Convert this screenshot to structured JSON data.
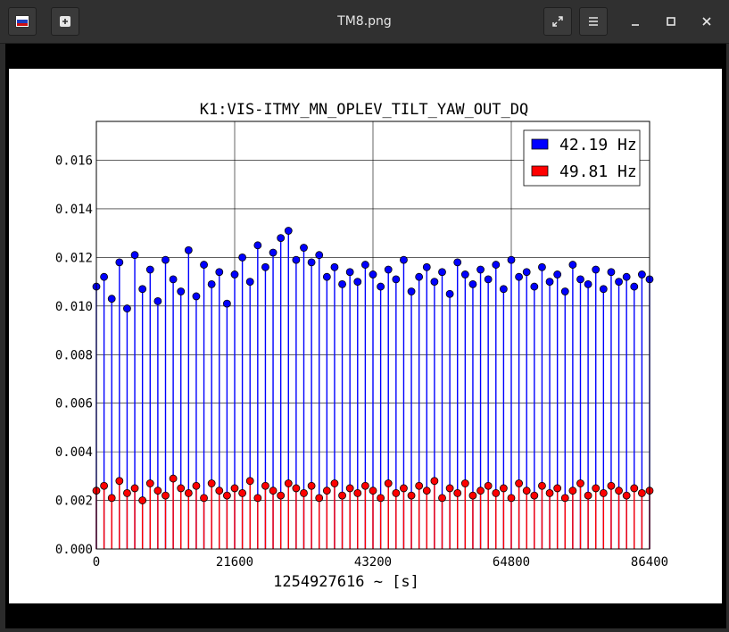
{
  "window": {
    "title": "TM8.png",
    "app_icon": "image-viewer-icon",
    "new_icon": "new-tab-icon",
    "fullscreen_icon": "fullscreen-icon",
    "menu_icon": "hamburger-menu-icon",
    "minimize_icon": "minimize-icon",
    "maximize_icon": "maximize-icon",
    "close_icon": "close-icon"
  },
  "chart_data": {
    "type": "scatter",
    "title": "K1:VIS-ITMY_MN_OPLEV_TILT_YAW_OUT_DQ",
    "xlabel": "1254927616 ~ [s]",
    "ylabel": "",
    "xlim": [
      0,
      86400
    ],
    "ylim": [
      0,
      0.0176
    ],
    "xticks": [
      0,
      21600,
      43200,
      64800,
      86400
    ],
    "xtick_labels": [
      "0",
      "21600",
      "43200",
      "64800",
      "86400"
    ],
    "yticks": [
      0,
      0.002,
      0.004,
      0.006,
      0.008,
      0.01,
      0.012,
      0.014,
      0.016
    ],
    "ytick_labels": [
      "0.000",
      "0.002",
      "0.004",
      "0.006",
      "0.008",
      "0.010",
      "0.012",
      "0.014",
      "0.016"
    ],
    "grid": true,
    "legend_position": "top-right",
    "series": [
      {
        "name": "42.19 Hz",
        "color": "#0000ff",
        "edge_color": "#000000",
        "style": "stem",
        "x": [
          0,
          1200,
          2400,
          3600,
          4800,
          6000,
          7200,
          8400,
          9600,
          10800,
          12000,
          13200,
          14400,
          15600,
          16800,
          18000,
          19200,
          20400,
          21600,
          22800,
          24000,
          25200,
          26400,
          27600,
          28800,
          30000,
          31200,
          32400,
          33600,
          34800,
          36000,
          37200,
          38400,
          39600,
          40800,
          42000,
          43200,
          44400,
          45600,
          46800,
          48000,
          49200,
          50400,
          51600,
          52800,
          54000,
          55200,
          56400,
          57600,
          58800,
          60000,
          61200,
          62400,
          63600,
          64800,
          66000,
          67200,
          68400,
          69600,
          70800,
          72000,
          73200,
          74400,
          75600,
          76800,
          78000,
          79200,
          80400,
          81600,
          82800,
          84000,
          85200,
          86400
        ],
        "y": [
          0.0108,
          0.0112,
          0.0103,
          0.0118,
          0.0099,
          0.0121,
          0.0107,
          0.0115,
          0.0102,
          0.0119,
          0.0111,
          0.0106,
          0.0123,
          0.0104,
          0.0117,
          0.0109,
          0.0114,
          0.0101,
          0.0113,
          0.012,
          0.011,
          0.0125,
          0.0116,
          0.0122,
          0.0128,
          0.0131,
          0.0119,
          0.0124,
          0.0118,
          0.0121,
          0.0112,
          0.0116,
          0.0109,
          0.0114,
          0.011,
          0.0117,
          0.0113,
          0.0108,
          0.0115,
          0.0111,
          0.0119,
          0.0106,
          0.0112,
          0.0116,
          0.011,
          0.0114,
          0.0105,
          0.0118,
          0.0113,
          0.0109,
          0.0115,
          0.0111,
          0.0117,
          0.0107,
          0.0119,
          0.0112,
          0.0114,
          0.0108,
          0.0116,
          0.011,
          0.0113,
          0.0106,
          0.0117,
          0.0111,
          0.0109,
          0.0115,
          0.0107,
          0.0114,
          0.011,
          0.0112,
          0.0108,
          0.0113,
          0.0111
        ]
      },
      {
        "name": "49.81 Hz",
        "color": "#ff0000",
        "edge_color": "#000000",
        "style": "stem",
        "x": [
          0,
          1200,
          2400,
          3600,
          4800,
          6000,
          7200,
          8400,
          9600,
          10800,
          12000,
          13200,
          14400,
          15600,
          16800,
          18000,
          19200,
          20400,
          21600,
          22800,
          24000,
          25200,
          26400,
          27600,
          28800,
          30000,
          31200,
          32400,
          33600,
          34800,
          36000,
          37200,
          38400,
          39600,
          40800,
          42000,
          43200,
          44400,
          45600,
          46800,
          48000,
          49200,
          50400,
          51600,
          52800,
          54000,
          55200,
          56400,
          57600,
          58800,
          60000,
          61200,
          62400,
          63600,
          64800,
          66000,
          67200,
          68400,
          69600,
          70800,
          72000,
          73200,
          74400,
          75600,
          76800,
          78000,
          79200,
          80400,
          81600,
          82800,
          84000,
          85200,
          86400
        ],
        "y": [
          0.0024,
          0.0026,
          0.0021,
          0.0028,
          0.0023,
          0.0025,
          0.002,
          0.0027,
          0.0024,
          0.0022,
          0.0029,
          0.0025,
          0.0023,
          0.0026,
          0.0021,
          0.0027,
          0.0024,
          0.0022,
          0.0025,
          0.0023,
          0.0028,
          0.0021,
          0.0026,
          0.0024,
          0.0022,
          0.0027,
          0.0025,
          0.0023,
          0.0026,
          0.0021,
          0.0024,
          0.0027,
          0.0022,
          0.0025,
          0.0023,
          0.0026,
          0.0024,
          0.0021,
          0.0027,
          0.0023,
          0.0025,
          0.0022,
          0.0026,
          0.0024,
          0.0028,
          0.0021,
          0.0025,
          0.0023,
          0.0027,
          0.0022,
          0.0024,
          0.0026,
          0.0023,
          0.0025,
          0.0021,
          0.0027,
          0.0024,
          0.0022,
          0.0026,
          0.0023,
          0.0025,
          0.0021,
          0.0024,
          0.0027,
          0.0022,
          0.0025,
          0.0023,
          0.0026,
          0.0024,
          0.0022,
          0.0025,
          0.0023,
          0.0024
        ]
      }
    ]
  }
}
